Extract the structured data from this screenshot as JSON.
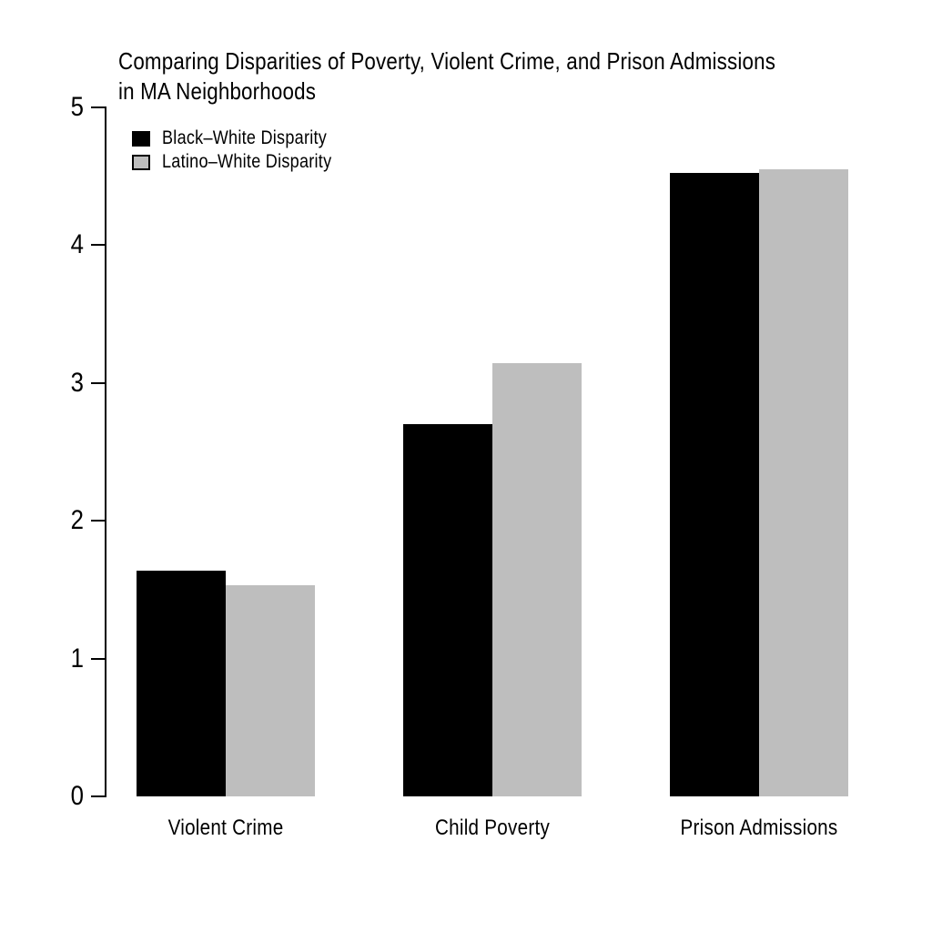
{
  "chart_data": {
    "type": "bar",
    "title": "Comparing Disparities of Poverty, Violent Crime, and Prison Admissions in MA Neighborhoods",
    "title_lines": [
      "Comparing Disparities of Poverty, Violent Crime, and Prison Admissions",
      "in MA Neighborhoods"
    ],
    "categories": [
      "Violent Crime",
      "Child Poverty",
      "Prison Admissions"
    ],
    "series": [
      {
        "name": "Black–White Disparity",
        "color": "#000000",
        "values": [
          1.64,
          2.7,
          4.52
        ]
      },
      {
        "name": "Latino–White Disparity",
        "color": "#bebebe",
        "values": [
          1.53,
          3.14,
          4.55
        ]
      }
    ],
    "xlabel": "",
    "ylabel": "",
    "ylim": [
      0,
      5
    ],
    "yticks": [
      0,
      1,
      2,
      3,
      4,
      5
    ],
    "grid": false,
    "legend_position": "top-left",
    "bar_border": "none",
    "axis_color": "#000000",
    "text_color": "#000000",
    "background_color": "#ffffff"
  }
}
